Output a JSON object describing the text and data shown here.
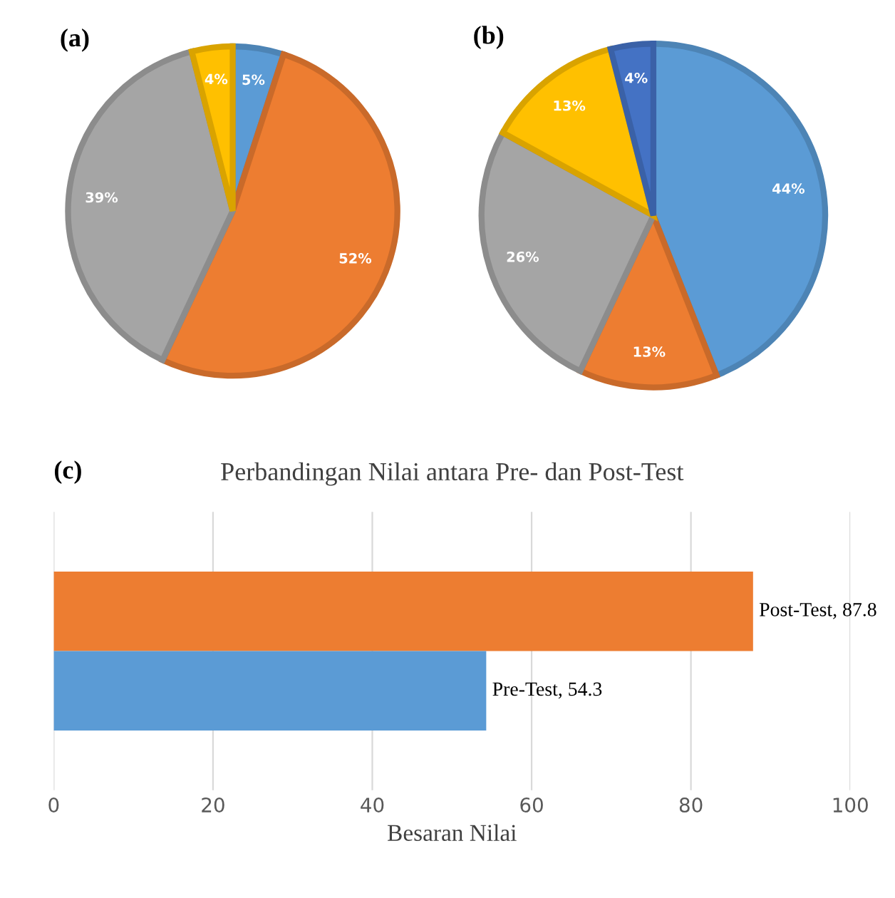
{
  "chart_data": [
    {
      "type": "pie",
      "annotations": [
        "(a)"
      ],
      "categories": [
        null,
        null,
        null,
        null
      ],
      "values": [
        5,
        52,
        39,
        4
      ],
      "colors": [
        "#5b9bd5",
        "#ed7d31",
        "#a5a5a5",
        "#ffc000"
      ],
      "value_labels": [
        "5%",
        "52%",
        "39%",
        "4%"
      ]
    },
    {
      "type": "pie",
      "annotations": [
        "(b)"
      ],
      "categories": [
        null,
        null,
        null,
        null,
        null
      ],
      "values": [
        44,
        13,
        26,
        13,
        4
      ],
      "colors": [
        "#5b9bd5",
        "#ed7d31",
        "#a5a5a5",
        "#ffc000",
        "#4472c4"
      ],
      "value_labels": [
        "44%",
        "13%",
        "26%",
        "13%",
        "4%"
      ]
    },
    {
      "type": "bar",
      "orientation": "horizontal",
      "title": "Perbandingan Nilai antara Pre- dan Post-Test",
      "annotations": [
        "(c)"
      ],
      "xlabel": "Besaran Nilai",
      "categories": [
        null,
        null
      ],
      "values": [
        87.8,
        54.3
      ],
      "colors": [
        "#ed7d31",
        "#5b9bd5"
      ],
      "value_labels": [
        "Post-Test, 87.8",
        "Pre-Test, 54.3"
      ],
      "xlim": [
        0,
        100
      ],
      "xticks": [
        0,
        20,
        40,
        60,
        80,
        100
      ],
      "grid": "x"
    }
  ]
}
